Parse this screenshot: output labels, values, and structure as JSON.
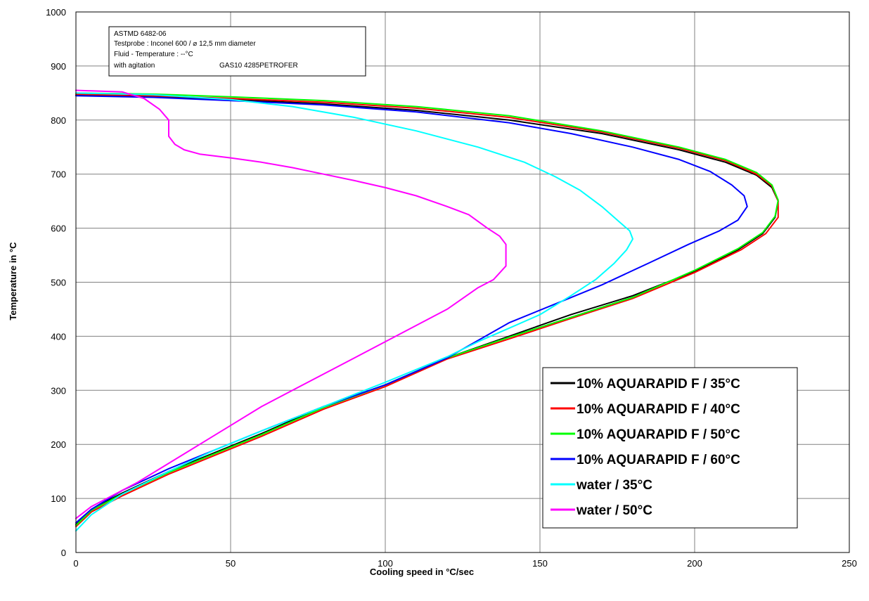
{
  "chart_data": {
    "type": "line",
    "title": "",
    "xlabel": "Cooling speed in °C/sec",
    "ylabel": "Temperature in °C",
    "xlim": [
      0,
      250
    ],
    "ylim": [
      0,
      1000
    ],
    "x_ticks": [
      0,
      50,
      100,
      150,
      200,
      250
    ],
    "y_ticks": [
      0,
      100,
      200,
      300,
      400,
      500,
      600,
      700,
      800,
      900,
      1000
    ],
    "grid": true,
    "legend_position": "bottom-right",
    "info_box": {
      "lines": [
        "ASTMD 6482-06",
        "Testprobe : Inconel 600 / ⌀ 12,5 mm diameter",
        "Fluid - Temperature : --°C",
        "with agitation"
      ],
      "ref": "GAS10 4285PETROFER"
    },
    "series": [
      {
        "name": "10% AQUARAPID F / 35°C",
        "color": "#000000",
        "points": [
          [
            0,
            846
          ],
          [
            25,
            843
          ],
          [
            50,
            838
          ],
          [
            80,
            830
          ],
          [
            110,
            818
          ],
          [
            140,
            800
          ],
          [
            170,
            775
          ],
          [
            195,
            745
          ],
          [
            210,
            722
          ],
          [
            220,
            698
          ],
          [
            225,
            675
          ],
          [
            227,
            650
          ],
          [
            226,
            620
          ],
          [
            222,
            590
          ],
          [
            214,
            560
          ],
          [
            200,
            520
          ],
          [
            180,
            475
          ],
          [
            160,
            440
          ],
          [
            140,
            400
          ],
          [
            120,
            360
          ],
          [
            100,
            310
          ],
          [
            80,
            270
          ],
          [
            60,
            220
          ],
          [
            45,
            185
          ],
          [
            30,
            150
          ],
          [
            15,
            110
          ],
          [
            5,
            80
          ],
          [
            0,
            52
          ]
        ]
      },
      {
        "name": "10% AQUARAPID F / 40°C",
        "color": "#ff0000",
        "points": [
          [
            0,
            848
          ],
          [
            25,
            845
          ],
          [
            50,
            840
          ],
          [
            80,
            833
          ],
          [
            110,
            822
          ],
          [
            140,
            805
          ],
          [
            170,
            778
          ],
          [
            195,
            748
          ],
          [
            210,
            725
          ],
          [
            220,
            700
          ],
          [
            225,
            678
          ],
          [
            227,
            650
          ],
          [
            227,
            620
          ],
          [
            223,
            590
          ],
          [
            215,
            560
          ],
          [
            200,
            518
          ],
          [
            180,
            470
          ],
          [
            160,
            433
          ],
          [
            140,
            395
          ],
          [
            120,
            358
          ],
          [
            100,
            307
          ],
          [
            80,
            265
          ],
          [
            60,
            215
          ],
          [
            45,
            180
          ],
          [
            30,
            145
          ],
          [
            15,
            105
          ],
          [
            5,
            75
          ],
          [
            0,
            48
          ]
        ]
      },
      {
        "name": "10% AQUARAPID F / 50°C",
        "color": "#00ff00",
        "points": [
          [
            0,
            850
          ],
          [
            25,
            848
          ],
          [
            50,
            843
          ],
          [
            80,
            836
          ],
          [
            110,
            825
          ],
          [
            140,
            808
          ],
          [
            170,
            780
          ],
          [
            195,
            750
          ],
          [
            210,
            727
          ],
          [
            220,
            703
          ],
          [
            225,
            680
          ],
          [
            227,
            652
          ],
          [
            226,
            622
          ],
          [
            222,
            592
          ],
          [
            214,
            562
          ],
          [
            200,
            522
          ],
          [
            180,
            472
          ],
          [
            160,
            435
          ],
          [
            140,
            398
          ],
          [
            120,
            360
          ],
          [
            100,
            310
          ],
          [
            80,
            268
          ],
          [
            60,
            218
          ],
          [
            45,
            183
          ],
          [
            30,
            148
          ],
          [
            15,
            108
          ],
          [
            5,
            78
          ],
          [
            0,
            50
          ]
        ]
      },
      {
        "name": "10% AQUARAPID F / 60°C",
        "color": "#0000ff",
        "points": [
          [
            0,
            845
          ],
          [
            25,
            842
          ],
          [
            50,
            836
          ],
          [
            80,
            828
          ],
          [
            110,
            815
          ],
          [
            140,
            795
          ],
          [
            160,
            775
          ],
          [
            180,
            750
          ],
          [
            195,
            727
          ],
          [
            205,
            705
          ],
          [
            212,
            680
          ],
          [
            216,
            660
          ],
          [
            217,
            640
          ],
          [
            214,
            615
          ],
          [
            208,
            595
          ],
          [
            198,
            570
          ],
          [
            185,
            535
          ],
          [
            170,
            495
          ],
          [
            155,
            460
          ],
          [
            140,
            425
          ],
          [
            120,
            360
          ],
          [
            100,
            310
          ],
          [
            80,
            270
          ],
          [
            60,
            225
          ],
          [
            45,
            190
          ],
          [
            30,
            155
          ],
          [
            15,
            115
          ],
          [
            5,
            80
          ],
          [
            0,
            55
          ]
        ]
      },
      {
        "name": "water / 35°C",
        "color": "#00ffff",
        "points": [
          [
            0,
            850
          ],
          [
            25,
            847
          ],
          [
            50,
            838
          ],
          [
            70,
            825
          ],
          [
            90,
            805
          ],
          [
            110,
            780
          ],
          [
            130,
            750
          ],
          [
            145,
            722
          ],
          [
            155,
            695
          ],
          [
            163,
            670
          ],
          [
            170,
            640
          ],
          [
            175,
            615
          ],
          [
            179,
            595
          ],
          [
            180,
            580
          ],
          [
            178,
            560
          ],
          [
            174,
            535
          ],
          [
            168,
            505
          ],
          [
            160,
            475
          ],
          [
            150,
            440
          ],
          [
            140,
            415
          ],
          [
            130,
            390
          ],
          [
            120,
            362
          ],
          [
            100,
            315
          ],
          [
            80,
            270
          ],
          [
            60,
            225
          ],
          [
            45,
            190
          ],
          [
            30,
            150
          ],
          [
            15,
            108
          ],
          [
            5,
            70
          ],
          [
            0,
            40
          ]
        ]
      },
      {
        "name": "water / 50°C",
        "color": "#ff00ff",
        "points": [
          [
            0,
            855
          ],
          [
            15,
            852
          ],
          [
            22,
            840
          ],
          [
            27,
            820
          ],
          [
            30,
            800
          ],
          [
            30,
            770
          ],
          [
            32,
            755
          ],
          [
            35,
            745
          ],
          [
            40,
            737
          ],
          [
            50,
            730
          ],
          [
            60,
            722
          ],
          [
            70,
            712
          ],
          [
            80,
            700
          ],
          [
            90,
            688
          ],
          [
            100,
            675
          ],
          [
            110,
            660
          ],
          [
            120,
            640
          ],
          [
            127,
            625
          ],
          [
            133,
            600
          ],
          [
            137,
            585
          ],
          [
            139,
            570
          ],
          [
            139,
            530
          ],
          [
            135,
            505
          ],
          [
            130,
            490
          ],
          [
            125,
            470
          ],
          [
            120,
            450
          ],
          [
            110,
            420
          ],
          [
            100,
            390
          ],
          [
            90,
            360
          ],
          [
            80,
            330
          ],
          [
            70,
            300
          ],
          [
            60,
            270
          ],
          [
            50,
            235
          ],
          [
            40,
            200
          ],
          [
            30,
            165
          ],
          [
            20,
            130
          ],
          [
            10,
            100
          ],
          [
            5,
            85
          ],
          [
            0,
            63
          ]
        ]
      }
    ]
  }
}
